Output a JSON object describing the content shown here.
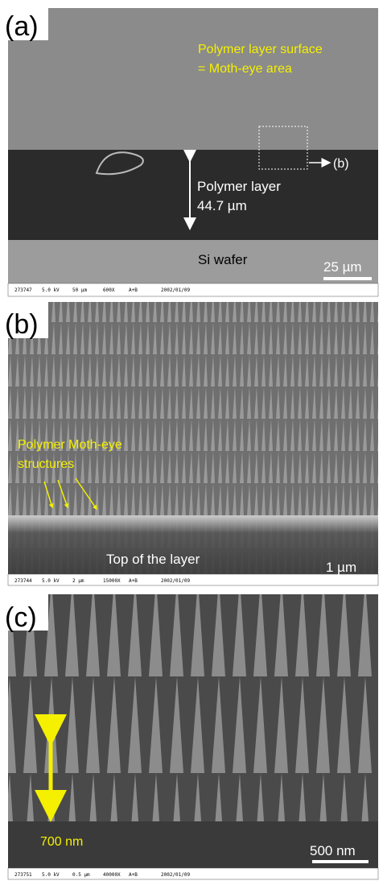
{
  "panels": [
    {
      "label": "(a)",
      "annotations": [
        "Polymer layer surface",
        "= Moth-eye area",
        "(b)",
        "Polymer layer",
        "44.7 µm",
        "Si wafer"
      ],
      "scale_bar": "25 µm",
      "info": [
        "273747",
        "5.0 kV",
        "50 µm",
        "600X",
        "A+B",
        "2002/01/09"
      ]
    },
    {
      "label": "(b)",
      "annotations": [
        "Polymer Moth-eye",
        "structures",
        "Top of the layer"
      ],
      "scale_bar": "1 µm",
      "info": [
        "273744",
        "5.0 kV",
        "2 µm",
        "15000X",
        "A+B",
        "2002/01/09"
      ]
    },
    {
      "label": "(c)",
      "annotations": [
        "700 nm"
      ],
      "scale_bar": "500 nm",
      "info": [
        "273751",
        "5.0 kV",
        "0.5 µm",
        "40000X",
        "A+B",
        "2002/01/09"
      ]
    }
  ]
}
